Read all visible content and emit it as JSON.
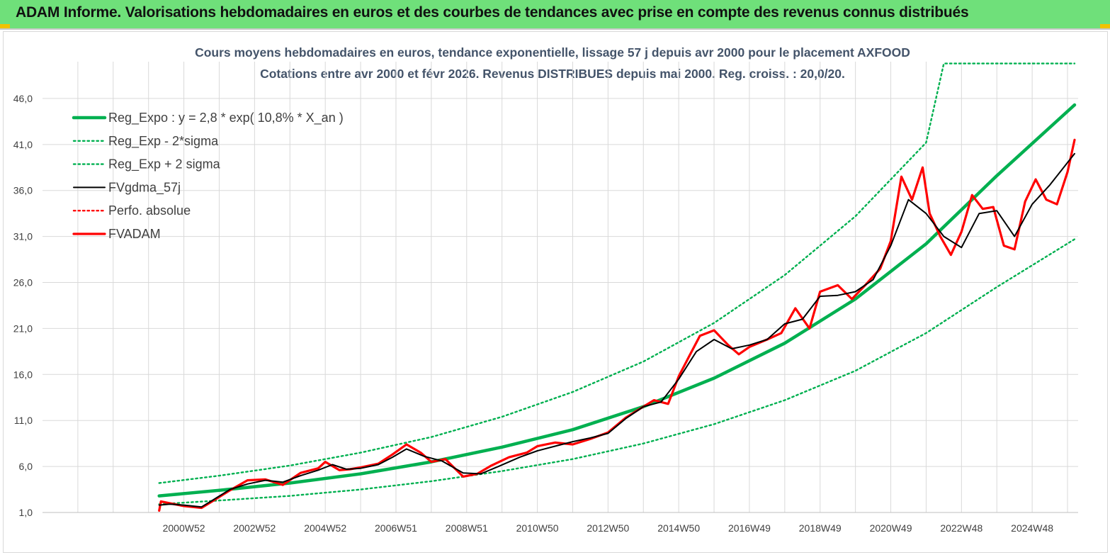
{
  "header": {
    "title": "ADAM Informe. Valorisations hebdomadaires en euros et des courbes de tendances avec prise en compte des revenus connus distribués"
  },
  "colors": {
    "banner": "#6fe07a",
    "reg_expo": "#00b050",
    "fvgdma": "#000000",
    "fvadam": "#ff0000",
    "title_text": "#44546a"
  },
  "chart_data": {
    "type": "line",
    "title": "Cours moyens hebdomadaires en euros, tendance exponentielle, lissage 57 j depuis avr 2000 pour le placement AXFOOD",
    "subtitle": "Cotations entre avr 2000 et févr 2026. Revenus DISTRIBUES depuis mai 2000. Reg. croiss. : 20,0/20.",
    "xlabel": "",
    "ylabel": "",
    "ylim": [
      1,
      50
    ],
    "yticks": [
      "1,0",
      "6,0",
      "11,0",
      "16,0",
      "21,0",
      "26,0",
      "31,0",
      "36,0",
      "41,0",
      "46,0"
    ],
    "ytick_values": [
      1,
      6,
      11,
      16,
      21,
      26,
      31,
      36,
      41,
      46
    ],
    "xticks": [
      "2000W52",
      "2002W52",
      "2004W52",
      "2006W51",
      "2008W51",
      "2010W50",
      "2012W50",
      "2014W50",
      "2016W49",
      "2018W49",
      "2020W49",
      "2022W48",
      "2024W48"
    ],
    "xtick_years": [
      2001.0,
      2003.0,
      2005.0,
      2007.0,
      2009.0,
      2011.0,
      2013.0,
      2015.0,
      2017.0,
      2019.0,
      2021.0,
      2023.0,
      2025.0
    ],
    "xlim": [
      1997.0,
      2026.3
    ],
    "grid": true,
    "legend_position": "top-left",
    "series": [
      {
        "name": "Reg_Expo : y = 2,8 * exp( 10,8% *  X_an )",
        "style": "solid-thick",
        "color": "#00b050",
        "x": [
          2000.3,
          2002,
          2004,
          2006,
          2008,
          2010,
          2012,
          2014,
          2016,
          2018,
          2020,
          2022,
          2024,
          2026.2
        ],
        "values": [
          2.8,
          3.4,
          4.2,
          5.2,
          6.5,
          8.1,
          10.0,
          12.5,
          15.6,
          19.4,
          24.2,
          30.2,
          37.6,
          45.3
        ]
      },
      {
        "name": "Reg_Exp - 2*sigma",
        "style": "dotted",
        "color": "#00b050",
        "x": [
          2000.3,
          2002,
          2004,
          2006,
          2008,
          2010,
          2012,
          2014,
          2016,
          2018,
          2020,
          2022,
          2024,
          2026.2
        ],
        "values": [
          1.9,
          2.3,
          2.8,
          3.5,
          4.4,
          5.5,
          6.8,
          8.5,
          10.6,
          13.2,
          16.4,
          20.5,
          25.5,
          30.7
        ]
      },
      {
        "name": "Reg_Exp + 2 sigma",
        "style": "dotted",
        "color": "#00b050",
        "x": [
          2000.3,
          2002,
          2004,
          2006,
          2008,
          2010,
          2012,
          2014,
          2016,
          2018,
          2020,
          2022,
          2022.5,
          2026.2
        ],
        "values": [
          4.2,
          5.0,
          6.1,
          7.5,
          9.2,
          11.4,
          14.1,
          17.4,
          21.6,
          26.8,
          33.2,
          41.2,
          49.8,
          49.8
        ]
      },
      {
        "name": "FVgdma_57j",
        "style": "solid",
        "color": "#000000",
        "x": [
          2000.3,
          2000.6,
          2001.0,
          2001.5,
          2001.8,
          2002.3,
          2002.8,
          2003.3,
          2003.8,
          2004.3,
          2004.8,
          2005.2,
          2005.6,
          2006.0,
          2006.5,
          2006.9,
          2007.3,
          2007.8,
          2008.3,
          2008.9,
          2009.4,
          2009.9,
          2010.5,
          2011.0,
          2011.5,
          2012.0,
          2012.5,
          2013.0,
          2013.5,
          2014.0,
          2014.5,
          2015.0,
          2015.5,
          2016.0,
          2016.5,
          2017.0,
          2017.5,
          2018.0,
          2018.5,
          2019.0,
          2019.5,
          2020.0,
          2020.5,
          2021.0,
          2021.5,
          2022.0,
          2022.5,
          2023.0,
          2023.5,
          2024.0,
          2024.5,
          2025.0,
          2025.5,
          2026.2
        ],
        "values": [
          1.8,
          1.9,
          1.8,
          1.6,
          2.3,
          3.5,
          4.1,
          4.5,
          4.3,
          5.0,
          5.6,
          6.2,
          5.7,
          5.8,
          6.2,
          7.0,
          7.9,
          7.1,
          6.6,
          5.3,
          5.2,
          6.0,
          7.0,
          7.7,
          8.2,
          8.7,
          9.1,
          9.6,
          11.2,
          12.5,
          13.0,
          15.5,
          18.5,
          19.8,
          18.8,
          19.2,
          19.8,
          21.5,
          22.0,
          24.5,
          24.6,
          25.0,
          26.3,
          30.0,
          35.0,
          33.5,
          31.0,
          29.8,
          33.5,
          33.8,
          31.0,
          34.5,
          36.6,
          40.0
        ]
      },
      {
        "name": "Perfo. absolue",
        "style": "dotted",
        "color": "#ff0000",
        "x": [],
        "values": []
      },
      {
        "name": "FVADAM",
        "style": "solid-thick",
        "color": "#ff0000",
        "x": [
          2000.3,
          2000.35,
          2000.6,
          2001.0,
          2001.5,
          2001.8,
          2002.3,
          2002.8,
          2003.3,
          2003.8,
          2004.3,
          2004.8,
          2005.0,
          2005.4,
          2005.7,
          2006.0,
          2006.5,
          2006.9,
          2007.3,
          2007.7,
          2008.0,
          2008.4,
          2008.9,
          2009.3,
          2009.7,
          2010.2,
          2010.7,
          2011.0,
          2011.5,
          2012.0,
          2012.5,
          2013.0,
          2013.5,
          2014.0,
          2014.3,
          2014.7,
          2015.0,
          2015.3,
          2015.6,
          2016.0,
          2016.4,
          2016.7,
          2017.0,
          2017.5,
          2017.9,
          2018.3,
          2018.7,
          2019.0,
          2019.5,
          2019.9,
          2020.3,
          2020.7,
          2021.0,
          2021.3,
          2021.6,
          2021.9,
          2022.1,
          2022.4,
          2022.7,
          2023.0,
          2023.3,
          2023.6,
          2023.9,
          2024.2,
          2024.5,
          2024.8,
          2025.1,
          2025.4,
          2025.7,
          2026.0,
          2026.2
        ],
        "values": [
          1.2,
          2.2,
          2.0,
          1.7,
          1.5,
          2.2,
          3.4,
          4.5,
          4.6,
          4.0,
          5.3,
          5.8,
          6.5,
          5.6,
          5.7,
          5.9,
          6.3,
          7.3,
          8.4,
          7.5,
          6.5,
          6.8,
          4.9,
          5.2,
          6.1,
          7.0,
          7.5,
          8.2,
          8.6,
          8.4,
          9.0,
          9.7,
          11.3,
          12.5,
          13.2,
          12.8,
          15.8,
          18.0,
          20.2,
          20.8,
          19.2,
          18.2,
          19.0,
          19.8,
          20.5,
          23.2,
          21.0,
          25.0,
          25.7,
          24.2,
          25.8,
          27.5,
          30.5,
          37.5,
          35.0,
          38.5,
          33.5,
          31.0,
          29.0,
          31.5,
          35.5,
          34.0,
          34.2,
          30.0,
          29.6,
          34.8,
          37.2,
          35.0,
          34.5,
          38.0,
          41.5
        ]
      }
    ]
  }
}
